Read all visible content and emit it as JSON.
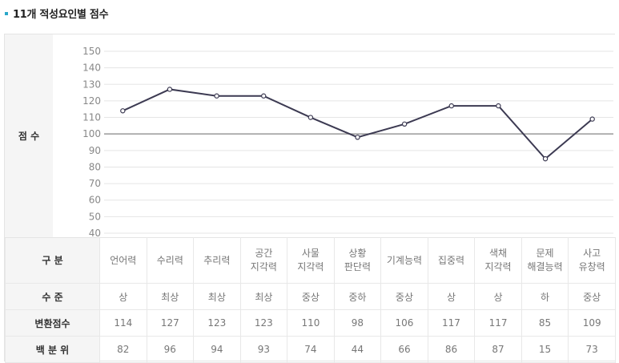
{
  "title": "11개 적성요인별 점수",
  "colors": {
    "accent": "#2aa7c9",
    "line": "#3c3a52",
    "grid": "#e5e5e5",
    "baseline": "#9a9a9a",
    "label_bg": "#f5f5f5"
  },
  "chart_row_label": "점 수",
  "table": {
    "row_headers": {
      "category": "구 분",
      "level": "수 준",
      "score": "변환점수",
      "percentile": "백 분 위"
    },
    "columns": [
      {
        "name": "언어력",
        "level": "상",
        "score": "114",
        "percentile": "82"
      },
      {
        "name": "수리력",
        "level": "최상",
        "score": "127",
        "percentile": "96"
      },
      {
        "name": "추리력",
        "level": "최상",
        "score": "123",
        "percentile": "94"
      },
      {
        "name": "공간\n지각력",
        "level": "최상",
        "score": "123",
        "percentile": "93"
      },
      {
        "name": "사물\n지각력",
        "level": "중상",
        "score": "110",
        "percentile": "74"
      },
      {
        "name": "상황\n판단력",
        "level": "중하",
        "score": "98",
        "percentile": "44"
      },
      {
        "name": "기계능력",
        "level": "중상",
        "score": "106",
        "percentile": "66"
      },
      {
        "name": "집중력",
        "level": "상",
        "score": "117",
        "percentile": "86"
      },
      {
        "name": "색채\n지각력",
        "level": "상",
        "score": "117",
        "percentile": "87"
      },
      {
        "name": "문제\n해결능력",
        "level": "하",
        "score": "85",
        "percentile": "15"
      },
      {
        "name": "사고\n유창력",
        "level": "중상",
        "score": "109",
        "percentile": "73"
      }
    ]
  },
  "chart_data": {
    "type": "line",
    "title": "11개 적성요인별 점수",
    "ylabel": "점 수",
    "xlabel": "",
    "categories": [
      "언어력",
      "수리력",
      "추리력",
      "공간지각력",
      "사물지각력",
      "상황판단력",
      "기계능력",
      "집중력",
      "색채지각력",
      "문제해결능력",
      "사고유창력"
    ],
    "series": [
      {
        "name": "변환점수",
        "values": [
          114,
          127,
          123,
          123,
          110,
          98,
          106,
          117,
          117,
          85,
          109
        ]
      }
    ],
    "ylim": [
      40,
      150
    ],
    "yticks": [
      150,
      140,
      130,
      120,
      110,
      100,
      90,
      80,
      70,
      60,
      50,
      40
    ],
    "reference_line": 100,
    "grid": true,
    "legend": "none"
  }
}
